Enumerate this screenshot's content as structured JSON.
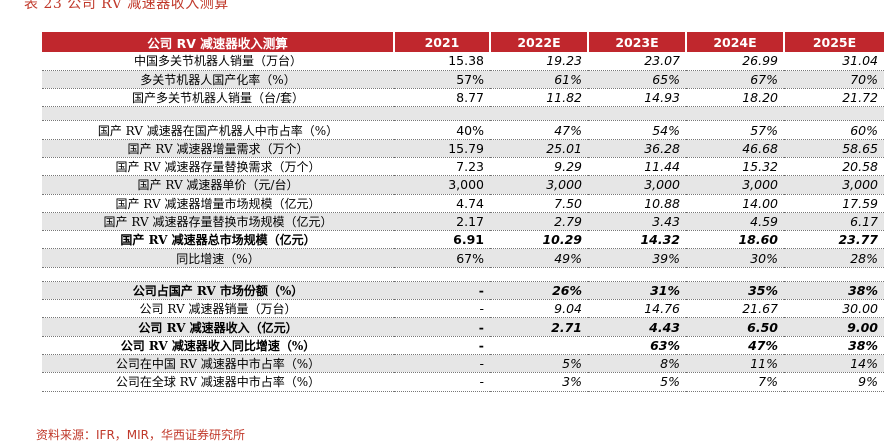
{
  "caption": "表 23 公司 RV 减速器收入测算",
  "source": "资料来源：IFR，MIR，华西证券研究所",
  "header": [
    "公司 RV 减速器收入测算",
    "2021",
    "2022E",
    "2023E",
    "2024E",
    "2025E"
  ],
  "rows": [
    {
      "label": "中国多关节机器人销量（万台）",
      "values": [
        "15.38",
        "19.23",
        "23.07",
        "26.99",
        "31.04"
      ],
      "shade": false,
      "bold": false,
      "blank": false
    },
    {
      "label": "多关节机器人国产化率（%）",
      "values": [
        "57%",
        "61%",
        "65%",
        "67%",
        "70%"
      ],
      "shade": true,
      "bold": false,
      "blank": false
    },
    {
      "label": "国产多关节机器人销量（台/套）",
      "values": [
        "8.77",
        "11.82",
        "14.93",
        "18.20",
        "21.72"
      ],
      "shade": false,
      "bold": false,
      "blank": false
    },
    {
      "label": "",
      "values": [
        "",
        "",
        "",
        "",
        ""
      ],
      "shade": true,
      "bold": false,
      "blank": true
    },
    {
      "label": "国产 RV 减速器在国产机器人中市占率（%）",
      "values": [
        "40%",
        "47%",
        "54%",
        "57%",
        "60%"
      ],
      "shade": false,
      "bold": false,
      "blank": false
    },
    {
      "label": "国产 RV 减速器增量需求（万个）",
      "values": [
        "15.79",
        "25.01",
        "36.28",
        "46.68",
        "58.65"
      ],
      "shade": true,
      "bold": false,
      "blank": false
    },
    {
      "label": "国产 RV 减速器存量替换需求（万个）",
      "values": [
        "7.23",
        "9.29",
        "11.44",
        "15.32",
        "20.58"
      ],
      "shade": false,
      "bold": false,
      "blank": false
    },
    {
      "label": "国产 RV 减速器单价（元/台）",
      "values": [
        "3,000",
        "3,000",
        "3,000",
        "3,000",
        "3,000"
      ],
      "shade": true,
      "bold": false,
      "blank": false
    },
    {
      "label": "国产 RV 减速器增量市场规模（亿元）",
      "values": [
        "4.74",
        "7.50",
        "10.88",
        "14.00",
        "17.59"
      ],
      "shade": false,
      "bold": false,
      "blank": false
    },
    {
      "label": "国产 RV 减速器存量替换市场规模（亿元）",
      "values": [
        "2.17",
        "2.79",
        "3.43",
        "4.59",
        "6.17"
      ],
      "shade": true,
      "bold": false,
      "blank": false
    },
    {
      "label": "国产 RV 减速器总市场规模（亿元）",
      "values": [
        "6.91",
        "10.29",
        "14.32",
        "18.60",
        "23.77"
      ],
      "shade": false,
      "bold": true,
      "blank": false
    },
    {
      "label": "同比增速（%）",
      "values": [
        "67%",
        "49%",
        "39%",
        "30%",
        "28%"
      ],
      "shade": true,
      "bold": false,
      "blank": false
    },
    {
      "label": "",
      "values": [
        "",
        "",
        "",
        "",
        ""
      ],
      "shade": false,
      "bold": false,
      "blank": true
    },
    {
      "label": "公司占国产 RV 市场份额（%）",
      "values": [
        "-",
        "26%",
        "31%",
        "35%",
        "38%"
      ],
      "shade": true,
      "bold": true,
      "blank": false
    },
    {
      "label": "公司 RV 减速器销量（万台）",
      "values": [
        "-",
        "9.04",
        "14.76",
        "21.67",
        "30.00"
      ],
      "shade": false,
      "bold": false,
      "blank": false
    },
    {
      "label": "公司 RV 减速器收入（亿元）",
      "values": [
        "-",
        "2.71",
        "4.43",
        "6.50",
        "9.00"
      ],
      "shade": true,
      "bold": true,
      "blank": false
    },
    {
      "label": "公司 RV 减速器收入同比增速（%）",
      "values": [
        "-",
        "",
        "63%",
        "47%",
        "38%"
      ],
      "shade": false,
      "bold": true,
      "blank": false
    },
    {
      "label": "公司在中国 RV 减速器中市占率（%）",
      "values": [
        "-",
        "5%",
        "8%",
        "11%",
        "14%"
      ],
      "shade": true,
      "bold": false,
      "blank": false
    },
    {
      "label": "公司在全球 RV 减速器中市占率（%）",
      "values": [
        "-",
        "3%",
        "5%",
        "7%",
        "9%"
      ],
      "shade": false,
      "bold": false,
      "blank": false
    }
  ]
}
